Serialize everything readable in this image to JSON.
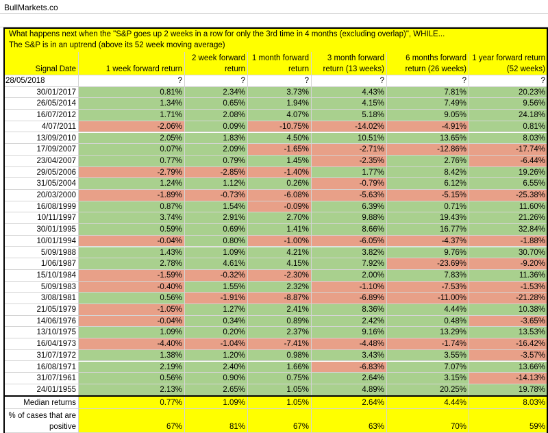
{
  "header": {
    "title": "BullMarkets.co"
  },
  "description": [
    "What happens next when the \"S&P goes up 2 weeks in a row for only the 3rd time in 4 months (excluding overlap)\", WHILE...",
    "The S&P is in an uptrend (above its 52 week moving average)"
  ],
  "colors": {
    "positive": "#a9d08e",
    "negative": "#e8a088",
    "highlight": "#ffff00"
  },
  "table": {
    "columns": [
      "Signal Date",
      "1 week forward return",
      "2 week forward return",
      "1 month forward return",
      "3 month forward return (13 weeks)",
      "6 months forward return (26 weeks)",
      "1 year forward return (52 weeks)"
    ],
    "rows": [
      [
        "28/05/2018",
        "?",
        "?",
        "?",
        "?",
        "?",
        "?"
      ],
      [
        "30/01/2017",
        "0.81%",
        "2.34%",
        "3.73%",
        "4.43%",
        "7.81%",
        "20.23%"
      ],
      [
        "26/05/2014",
        "1.34%",
        "0.65%",
        "1.94%",
        "4.15%",
        "7.49%",
        "9.56%"
      ],
      [
        "16/07/2012",
        "1.71%",
        "2.08%",
        "4.07%",
        "5.18%",
        "9.05%",
        "24.18%"
      ],
      [
        "4/07/2011",
        "-2.06%",
        "0.09%",
        "-10.75%",
        "-14.02%",
        "-4.91%",
        "0.81%"
      ],
      [
        "13/09/2010",
        "2.05%",
        "1.83%",
        "4.50%",
        "10.51%",
        "13.65%",
        "8.03%"
      ],
      [
        "17/09/2007",
        "0.07%",
        "2.09%",
        "-1.65%",
        "-2.71%",
        "-12.86%",
        "-17.74%"
      ],
      [
        "23/04/2007",
        "0.77%",
        "0.79%",
        "1.45%",
        "-2.35%",
        "2.76%",
        "-6.44%"
      ],
      [
        "29/05/2006",
        "-2.79%",
        "-2.85%",
        "-1.40%",
        "1.77%",
        "8.42%",
        "19.26%"
      ],
      [
        "31/05/2004",
        "1.24%",
        "1.12%",
        "0.26%",
        "-0.79%",
        "6.12%",
        "6.55%"
      ],
      [
        "20/03/2000",
        "-1.89%",
        "-0.73%",
        "-6.08%",
        "-5.63%",
        "-5.15%",
        "-25.38%"
      ],
      [
        "16/08/1999",
        "0.87%",
        "1.54%",
        "-0.09%",
        "6.39%",
        "0.71%",
        "11.60%"
      ],
      [
        "10/11/1997",
        "3.74%",
        "2.91%",
        "2.70%",
        "9.88%",
        "19.43%",
        "21.26%"
      ],
      [
        "30/01/1995",
        "0.59%",
        "0.69%",
        "1.41%",
        "8.66%",
        "16.77%",
        "32.84%"
      ],
      [
        "10/01/1994",
        "-0.04%",
        "0.80%",
        "-1.00%",
        "-6.05%",
        "-4.37%",
        "-1.88%"
      ],
      [
        "5/09/1988",
        "1.43%",
        "1.09%",
        "4.21%",
        "3.82%",
        "9.76%",
        "30.70%"
      ],
      [
        "1/06/1987",
        "2.78%",
        "4.61%",
        "4.15%",
        "7.92%",
        "-23.69%",
        "-9.20%"
      ],
      [
        "15/10/1984",
        "-1.59%",
        "-0.32%",
        "-2.30%",
        "2.00%",
        "7.83%",
        "11.36%"
      ],
      [
        "5/09/1983",
        "-0.40%",
        "1.55%",
        "2.32%",
        "-1.10%",
        "-7.53%",
        "-1.53%"
      ],
      [
        "3/08/1981",
        "0.56%",
        "-1.91%",
        "-8.87%",
        "-6.89%",
        "-11.00%",
        "-21.28%"
      ],
      [
        "21/05/1979",
        "-1.05%",
        "1.27%",
        "2.41%",
        "8.36%",
        "4.44%",
        "10.38%"
      ],
      [
        "14/06/1976",
        "-0.04%",
        "0.34%",
        "0.89%",
        "2.42%",
        "0.48%",
        "-3.65%"
      ],
      [
        "13/10/1975",
        "1.09%",
        "0.20%",
        "2.37%",
        "9.16%",
        "13.29%",
        "13.53%"
      ],
      [
        "16/04/1973",
        "-4.40%",
        "-1.04%",
        "-7.41%",
        "-4.48%",
        "-1.74%",
        "-16.42%"
      ],
      [
        "31/07/1972",
        "1.38%",
        "1.20%",
        "0.98%",
        "3.43%",
        "3.55%",
        "-3.57%"
      ],
      [
        "16/08/1971",
        "2.19%",
        "2.40%",
        "1.66%",
        "-6.83%",
        "7.07%",
        "13.66%"
      ],
      [
        "31/07/1961",
        "0.56%",
        "0.90%",
        "0.75%",
        "2.64%",
        "3.15%",
        "-14.13%"
      ],
      [
        "24/01/1955",
        "2.13%",
        "2.65%",
        "1.05%",
        "4.89%",
        "20.25%",
        "19.78%"
      ]
    ],
    "summary": [
      [
        "Median returns",
        "0.77%",
        "1.09%",
        "1.05%",
        "2.64%",
        "4.44%",
        "8.03%"
      ],
      [
        "% of cases that are positive",
        "67%",
        "81%",
        "67%",
        "63%",
        "70%",
        "59%"
      ]
    ]
  }
}
